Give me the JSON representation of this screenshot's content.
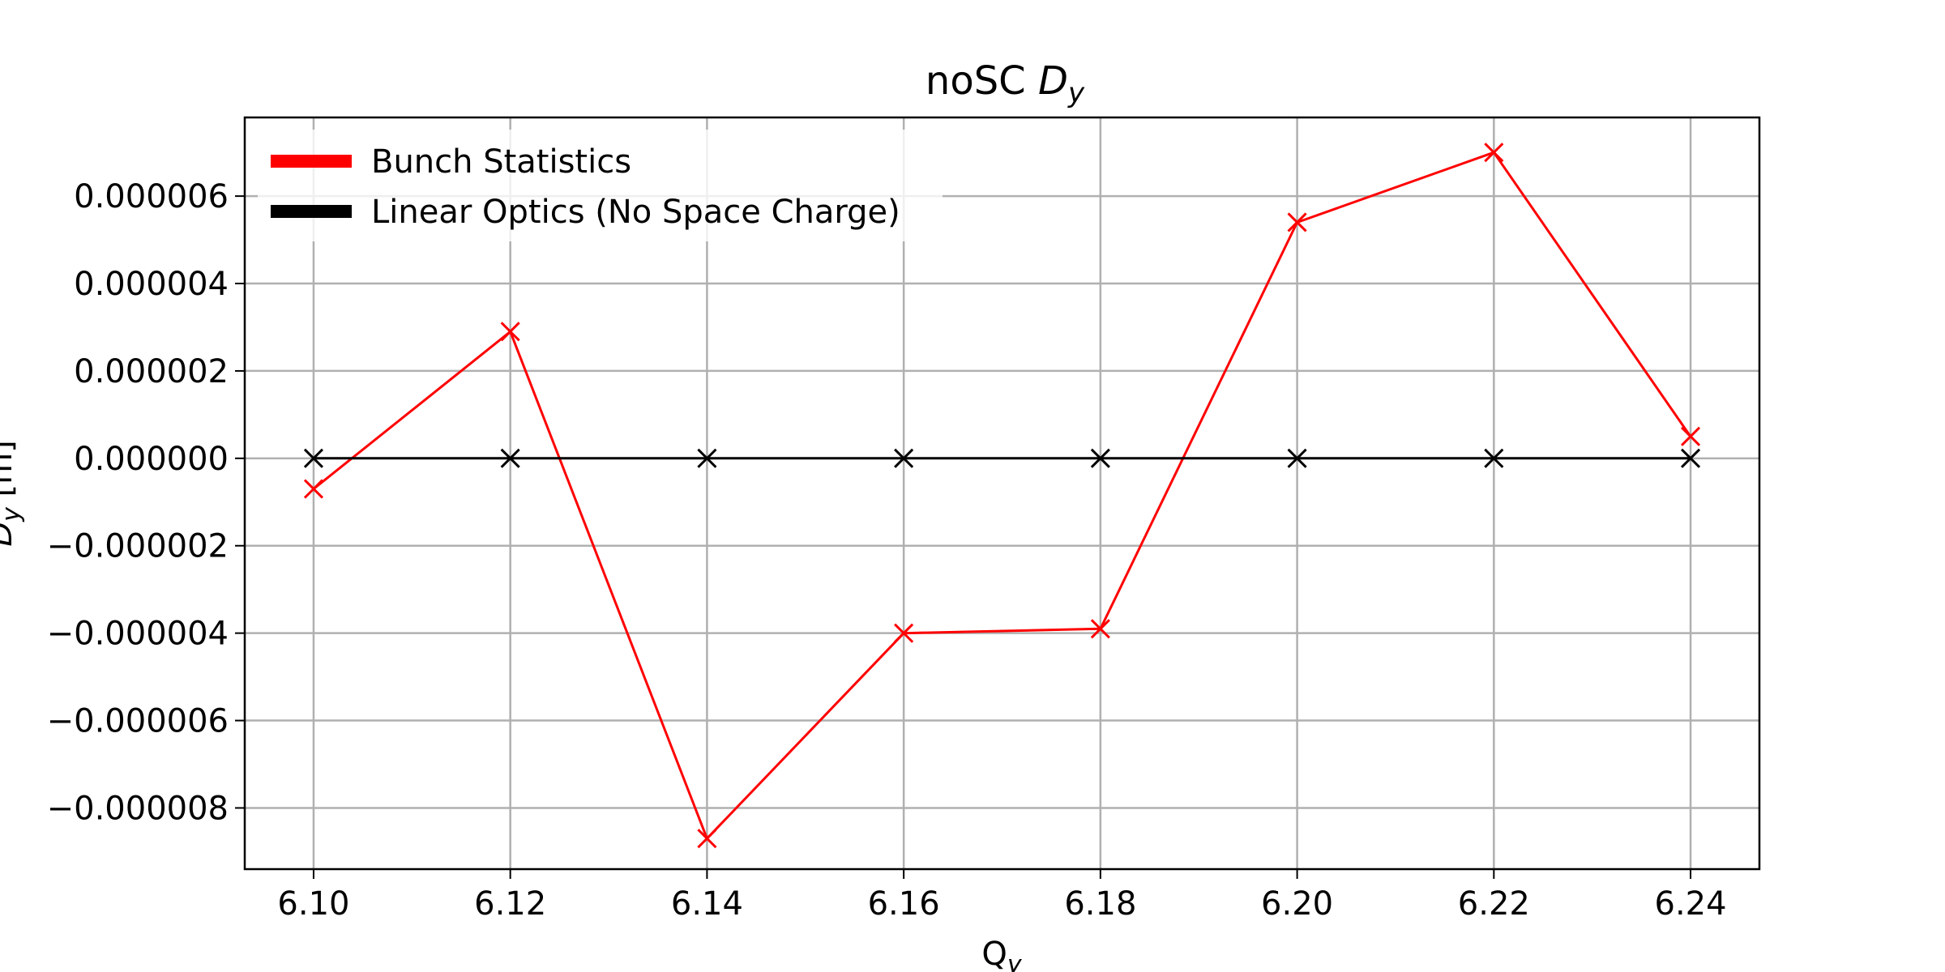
{
  "chart_data": {
    "type": "line",
    "title": "noSC",
    "title_math": "D",
    "title_math_sub": "y",
    "xlabel": "Q",
    "xlabel_sub": "y",
    "ylabel": "D",
    "ylabel_sub": "y",
    "ylabel_unit": " [m]",
    "x": [
      6.1,
      6.12,
      6.14,
      6.16,
      6.18,
      6.2,
      6.22,
      6.24
    ],
    "xlim": [
      6.093,
      6.247
    ],
    "ylim": [
      -9.4e-06,
      7.8e-06
    ],
    "xticks": [
      "6.10",
      "6.12",
      "6.14",
      "6.16",
      "6.18",
      "6.20",
      "6.22",
      "6.24"
    ],
    "yticks": [
      {
        "value": 6e-06,
        "label": "0.000006"
      },
      {
        "value": 4e-06,
        "label": "0.000004"
      },
      {
        "value": 2e-06,
        "label": "0.000002"
      },
      {
        "value": 0.0,
        "label": "0.000000"
      },
      {
        "value": -2e-06,
        "label": "−0.000002"
      },
      {
        "value": -4e-06,
        "label": "−0.000004"
      },
      {
        "value": -6e-06,
        "label": "−0.000006"
      },
      {
        "value": -8e-06,
        "label": "−0.000008"
      }
    ],
    "grid": true,
    "legend_position": "upper-left",
    "series": [
      {
        "name": "Bunch Statistics",
        "color": "#ff0000",
        "marker": "x",
        "values": [
          -7e-07,
          2.9e-06,
          -8.7e-06,
          -4e-06,
          -3.9e-06,
          5.4e-06,
          7e-06,
          5e-07
        ]
      },
      {
        "name": "Linear Optics (No Space Charge)",
        "color": "#000000",
        "marker": "x",
        "values": [
          0,
          0,
          0,
          0,
          0,
          0,
          0,
          0
        ]
      }
    ]
  }
}
